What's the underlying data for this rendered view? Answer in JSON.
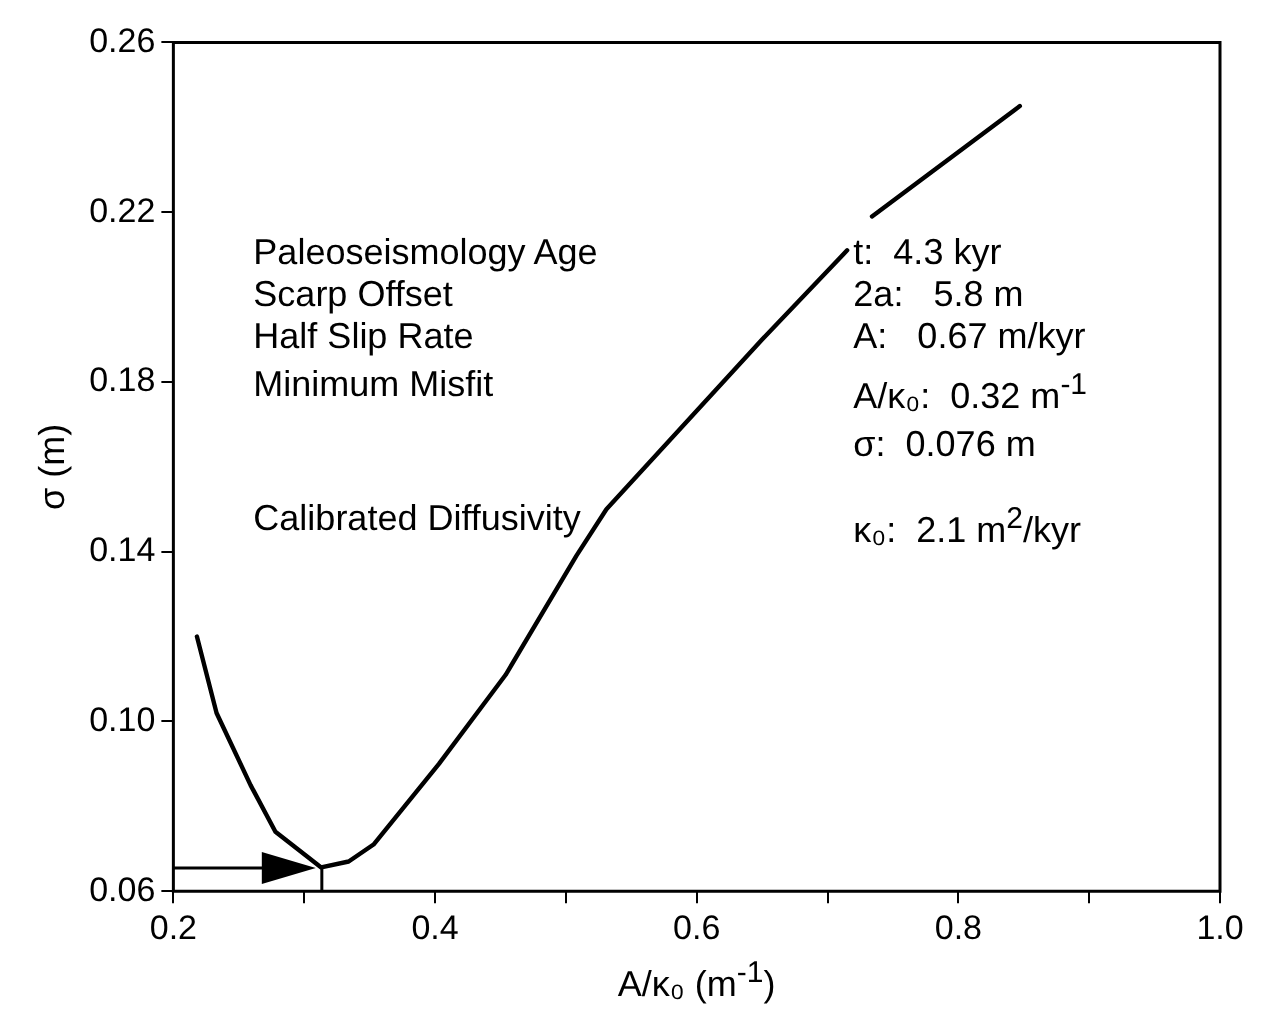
{
  "chart_data": {
    "type": "line",
    "xlabel": "A/κ₀ (m$^{-1}$)",
    "ylabel": "σ (m)",
    "x": [
      0.218,
      0.233,
      0.259,
      0.278,
      0.313,
      0.334,
      0.353,
      0.403,
      0.454,
      0.508,
      0.531,
      0.65,
      0.715,
      null,
      0.734,
      0.847
    ],
    "series": [
      {
        "color": "#000000",
        "values": [
          0.12,
          0.102,
          0.085,
          0.074,
          0.0656,
          0.067,
          0.071,
          0.09,
          0.111,
          0.139,
          0.15,
          0.19,
          0.211,
          null,
          0.219,
          0.245
        ]
      }
    ],
    "xlim": [
      0.2,
      1.0
    ],
    "xticks": [
      0.2,
      {
        "value": 0.3,
        "label": null
      },
      0.4,
      {
        "value": 0.5,
        "label": null
      },
      0.6,
      {
        "value": 0.7,
        "label": null
      },
      0.8,
      {
        "value": 0.9,
        "label": null
      },
      {
        "value": 1.0,
        "label": "1.0"
      }
    ],
    "ylim": [
      0.06,
      0.26
    ],
    "yticks": [
      0.06,
      {
        "value": 0.1,
        "label": "0.10"
      },
      0.14,
      0.18,
      0.22,
      0.26
    ],
    "grid": false,
    "legend": false,
    "marker": "none",
    "line_style": "solid",
    "annotations": [
      "Paleoseismology Age",
      "t:  4.3 kyr",
      "Scarp Offset",
      "2a:   5.8 m",
      "Half Slip Rate",
      "A:   0.67 m/kyr",
      "Minimum Misfit",
      "A/κ₀:  0.32 m$^{-1}$",
      "σ:  0.076 m",
      "Calibrated Diffusivity",
      "κ₀:  2.1 m$^{2}$/kyr"
    ]
  }
}
